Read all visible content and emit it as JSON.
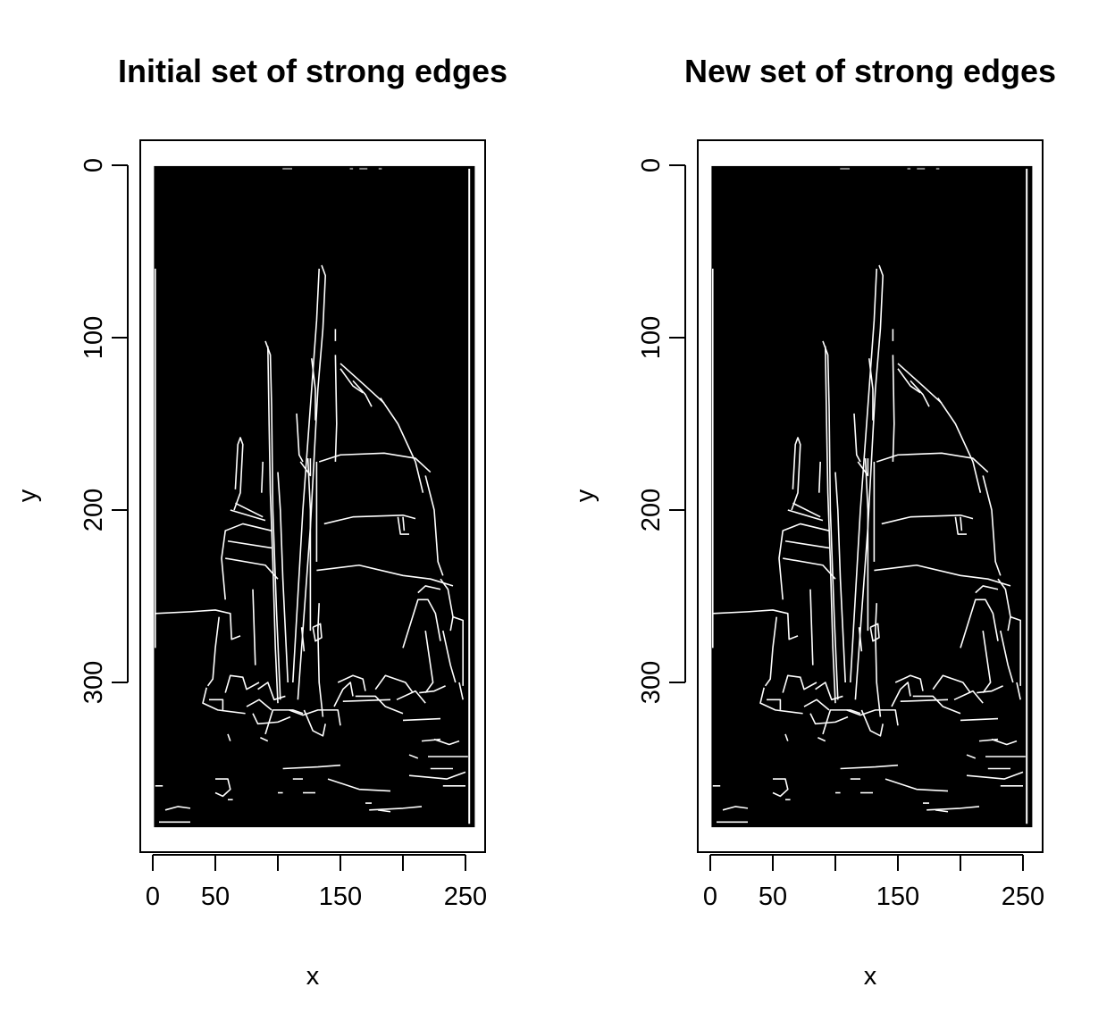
{
  "figure": {
    "background": "#ffffff",
    "plot_fill": "#000000",
    "edge_color": "#ffffff"
  },
  "chart_data": [
    {
      "type": "image",
      "title": "Initial set of strong edges",
      "xlabel": "x",
      "ylabel": "y",
      "xlim": [
        0,
        256
      ],
      "ylim": [
        384,
        0
      ],
      "xticks": [
        0,
        50,
        100,
        150,
        200,
        250
      ],
      "xtick_labels": [
        "0",
        "50",
        "",
        "150",
        "",
        "250"
      ],
      "yticks": [
        0,
        100,
        200,
        300
      ],
      "ytick_labels": [
        "0",
        "100",
        "200",
        "300"
      ],
      "grid": false,
      "image_extent": {
        "x": [
          1,
          256
        ],
        "y": [
          1,
          384
        ]
      }
    },
    {
      "type": "image",
      "title": "New set of strong edges",
      "xlabel": "x",
      "ylabel": "y",
      "xlim": [
        0,
        256
      ],
      "ylim": [
        384,
        0
      ],
      "xticks": [
        0,
        50,
        100,
        150,
        200,
        250
      ],
      "xtick_labels": [
        "0",
        "50",
        "",
        "150",
        "",
        "250"
      ],
      "yticks": [
        0,
        100,
        200,
        300
      ],
      "ytick_labels": [
        "0",
        "100",
        "200",
        "300"
      ],
      "grid": false,
      "image_extent": {
        "x": [
          1,
          256
        ],
        "y": [
          1,
          384
        ]
      }
    }
  ]
}
